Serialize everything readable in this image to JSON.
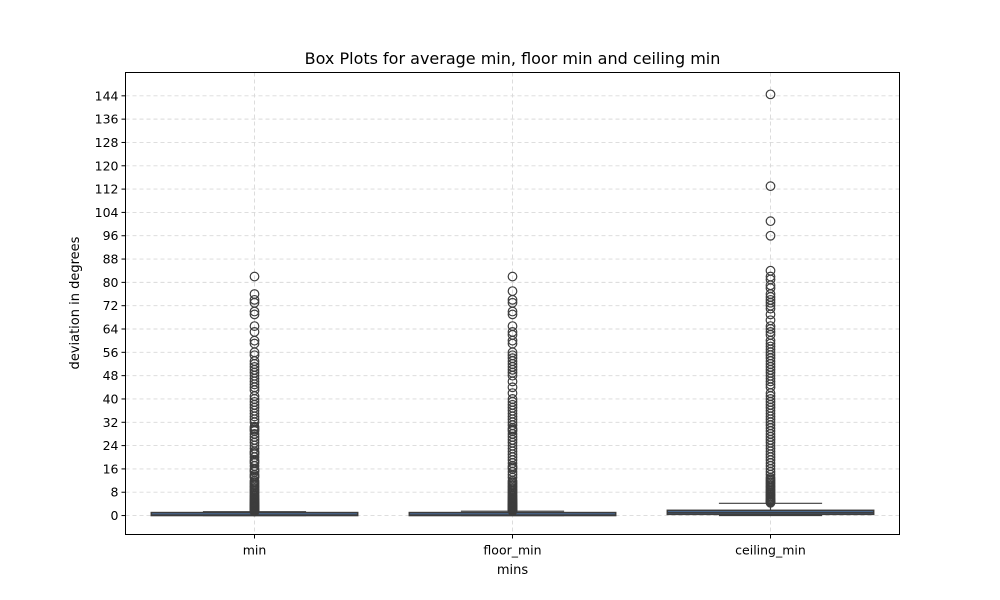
{
  "chart_data": {
    "type": "box",
    "title": "Box Plots for average min, floor min and ceiling min",
    "xlabel": "mins",
    "ylabel": "deviation in degrees",
    "categories": [
      "min",
      "floor_min",
      "ceiling_min"
    ],
    "ylim": [
      -6.5,
      152
    ],
    "yticks": [
      0,
      8,
      16,
      24,
      32,
      40,
      48,
      56,
      64,
      72,
      80,
      88,
      96,
      104,
      112,
      120,
      128,
      136,
      144
    ],
    "grid": true,
    "box_color": "#4a6fa0",
    "series": [
      {
        "stats": {
          "whisker_low": 0,
          "q1": 0,
          "median": 0.2,
          "q3": 0.6,
          "whisker_high": 1.3
        },
        "outliers": [
          1.4,
          1.6,
          1.8,
          2,
          2.2,
          2.4,
          2.6,
          2.8,
          3,
          3.2,
          3.4,
          3.6,
          3.8,
          4,
          4.2,
          4.5,
          4.8,
          5.1,
          5.4,
          5.8,
          6.2,
          6.6,
          7,
          7.5,
          8,
          8.5,
          9,
          9.5,
          10,
          10.5,
          11,
          11.5,
          12,
          13,
          13.5,
          14,
          15,
          15.5,
          16,
          17,
          18,
          18.5,
          19,
          20,
          21,
          21.5,
          22,
          23,
          24,
          25,
          26,
          27,
          28,
          29,
          29.5,
          30,
          30.5,
          32,
          33,
          34,
          35,
          36,
          37,
          38,
          39,
          40,
          41,
          43,
          44,
          45,
          46,
          47,
          48,
          49,
          50,
          51,
          52,
          53,
          55,
          56,
          59,
          60,
          63,
          65,
          69,
          70,
          73,
          74,
          76,
          82
        ]
      },
      {
        "stats": {
          "whisker_low": 0,
          "q1": 0,
          "median": 0.2,
          "q3": 0.6,
          "whisker_high": 1.5
        },
        "outliers": [
          1.6,
          1.8,
          2,
          2.2,
          2.4,
          2.6,
          2.8,
          3,
          3.2,
          3.4,
          3.6,
          3.8,
          4,
          4.2,
          4.5,
          4.8,
          5.1,
          5.4,
          5.8,
          6.2,
          6.6,
          7,
          7.5,
          8,
          8.5,
          9,
          9.5,
          10,
          10.5,
          11,
          11.5,
          12,
          13,
          14,
          15,
          16,
          16.5,
          17,
          18,
          19,
          20,
          21,
          22,
          23,
          24,
          25,
          26,
          27,
          28,
          29,
          29.5,
          30,
          31,
          32,
          33,
          34,
          35,
          36,
          37,
          38,
          39,
          40,
          42,
          44,
          46,
          48,
          49,
          50,
          51,
          52,
          53,
          54,
          55,
          56,
          59,
          60,
          62,
          63,
          65,
          69,
          70,
          73,
          74,
          77,
          82
        ]
      },
      {
        "stats": {
          "whisker_low": 0,
          "q1": 0.4,
          "median": 1.0,
          "q3": 1.8,
          "whisker_high": 4.2
        },
        "outliers": [
          4.4,
          4.6,
          4.8,
          5,
          5.3,
          5.6,
          6,
          6.4,
          6.8,
          7.2,
          7.6,
          8,
          8.5,
          9,
          9.5,
          10,
          10.5,
          11,
          11.5,
          12,
          12.5,
          13,
          14,
          15,
          16,
          17,
          18,
          19,
          20,
          21,
          22,
          23,
          24,
          25,
          26,
          27,
          28,
          29,
          30,
          31,
          32,
          33,
          34,
          35,
          36,
          37,
          38,
          39,
          40,
          41,
          42,
          44,
          45,
          46,
          47,
          48,
          49,
          50,
          51,
          52,
          53,
          54,
          55,
          56,
          57,
          58,
          59,
          60,
          62,
          63,
          64,
          65,
          67,
          69,
          71,
          72,
          73,
          74,
          75,
          76,
          78,
          79,
          81,
          82,
          84,
          96,
          101,
          113,
          144.5
        ]
      }
    ]
  }
}
